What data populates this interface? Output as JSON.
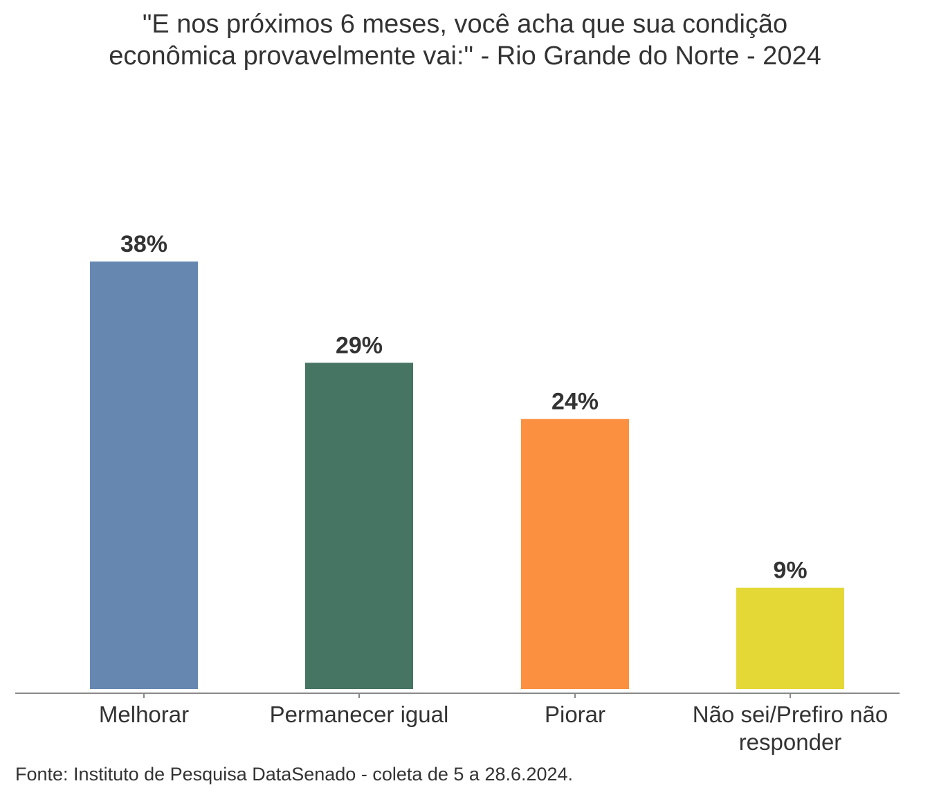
{
  "chart_data": {
    "type": "bar",
    "title": "\"E nos próximos 6 meses, você acha que sua condição\neconômica provavelmente vai:\" - Rio Grande do Norte - 2024",
    "categories": [
      "Melhorar",
      "Permanecer igual",
      "Piorar",
      "Não sei/Prefiro não responder"
    ],
    "category_lines": [
      [
        "Melhorar"
      ],
      [
        "Permanecer igual"
      ],
      [
        "Piorar"
      ],
      [
        "Não sei/Prefiro não",
        "responder"
      ]
    ],
    "values": [
      38,
      29,
      24,
      9
    ],
    "value_labels": [
      "38%",
      "29%",
      "24%",
      "9%"
    ],
    "colors": [
      "#6688b0",
      "#467563",
      "#fb9040",
      "#e4d836"
    ],
    "ylim": [
      0,
      40
    ],
    "xlabel": "",
    "ylabel": "",
    "grid": false,
    "legend": "none",
    "source": "Fonte: Instituto de Pesquisa DataSenado - coleta de 5 a 28.6.2024."
  }
}
